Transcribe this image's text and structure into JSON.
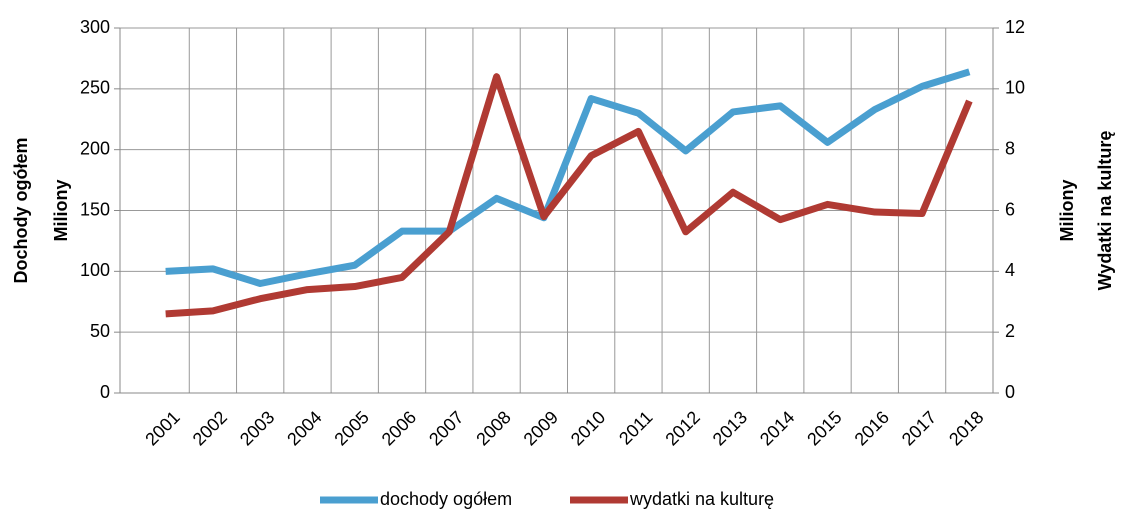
{
  "chart_data": {
    "type": "line",
    "y_label": [
      "Dochody ogółem",
      "Miliony"
    ],
    "y2_label": [
      "Miliony",
      "Wydatki na kulturę"
    ],
    "categories": [
      "2001",
      "2002",
      "2003",
      "2004",
      "2005",
      "2006",
      "2007",
      "2008",
      "2009",
      "2010",
      "2011",
      "2012",
      "2013",
      "2014",
      "2015",
      "2016",
      "2017",
      "2018"
    ],
    "series": [
      {
        "name": "dochody ogółem",
        "color": "#4a9fd0",
        "values": [
          100,
          102,
          90,
          98,
          105,
          133,
          133,
          160,
          144,
          242,
          230,
          199,
          231,
          236,
          206,
          233,
          252,
          264
        ]
      },
      {
        "name": "wydatki na kulturę",
        "color": "#b03a33",
        "axis": "y2",
        "values": [
          2.6,
          2.7,
          3.1,
          3.4,
          3.5,
          3.8,
          5.3,
          10.4,
          5.8,
          7.8,
          8.6,
          5.3,
          6.6,
          5.7,
          6.2,
          5.95,
          5.9,
          9.6
        ]
      }
    ],
    "ylim": [
      0,
      300
    ],
    "yticks": [
      0,
      50,
      100,
      150,
      200,
      250,
      300
    ],
    "y2lim": [
      0,
      12
    ],
    "y2ticks": [
      0,
      2,
      4,
      6,
      8,
      10,
      12
    ],
    "grid": true,
    "legend": "bottom"
  }
}
